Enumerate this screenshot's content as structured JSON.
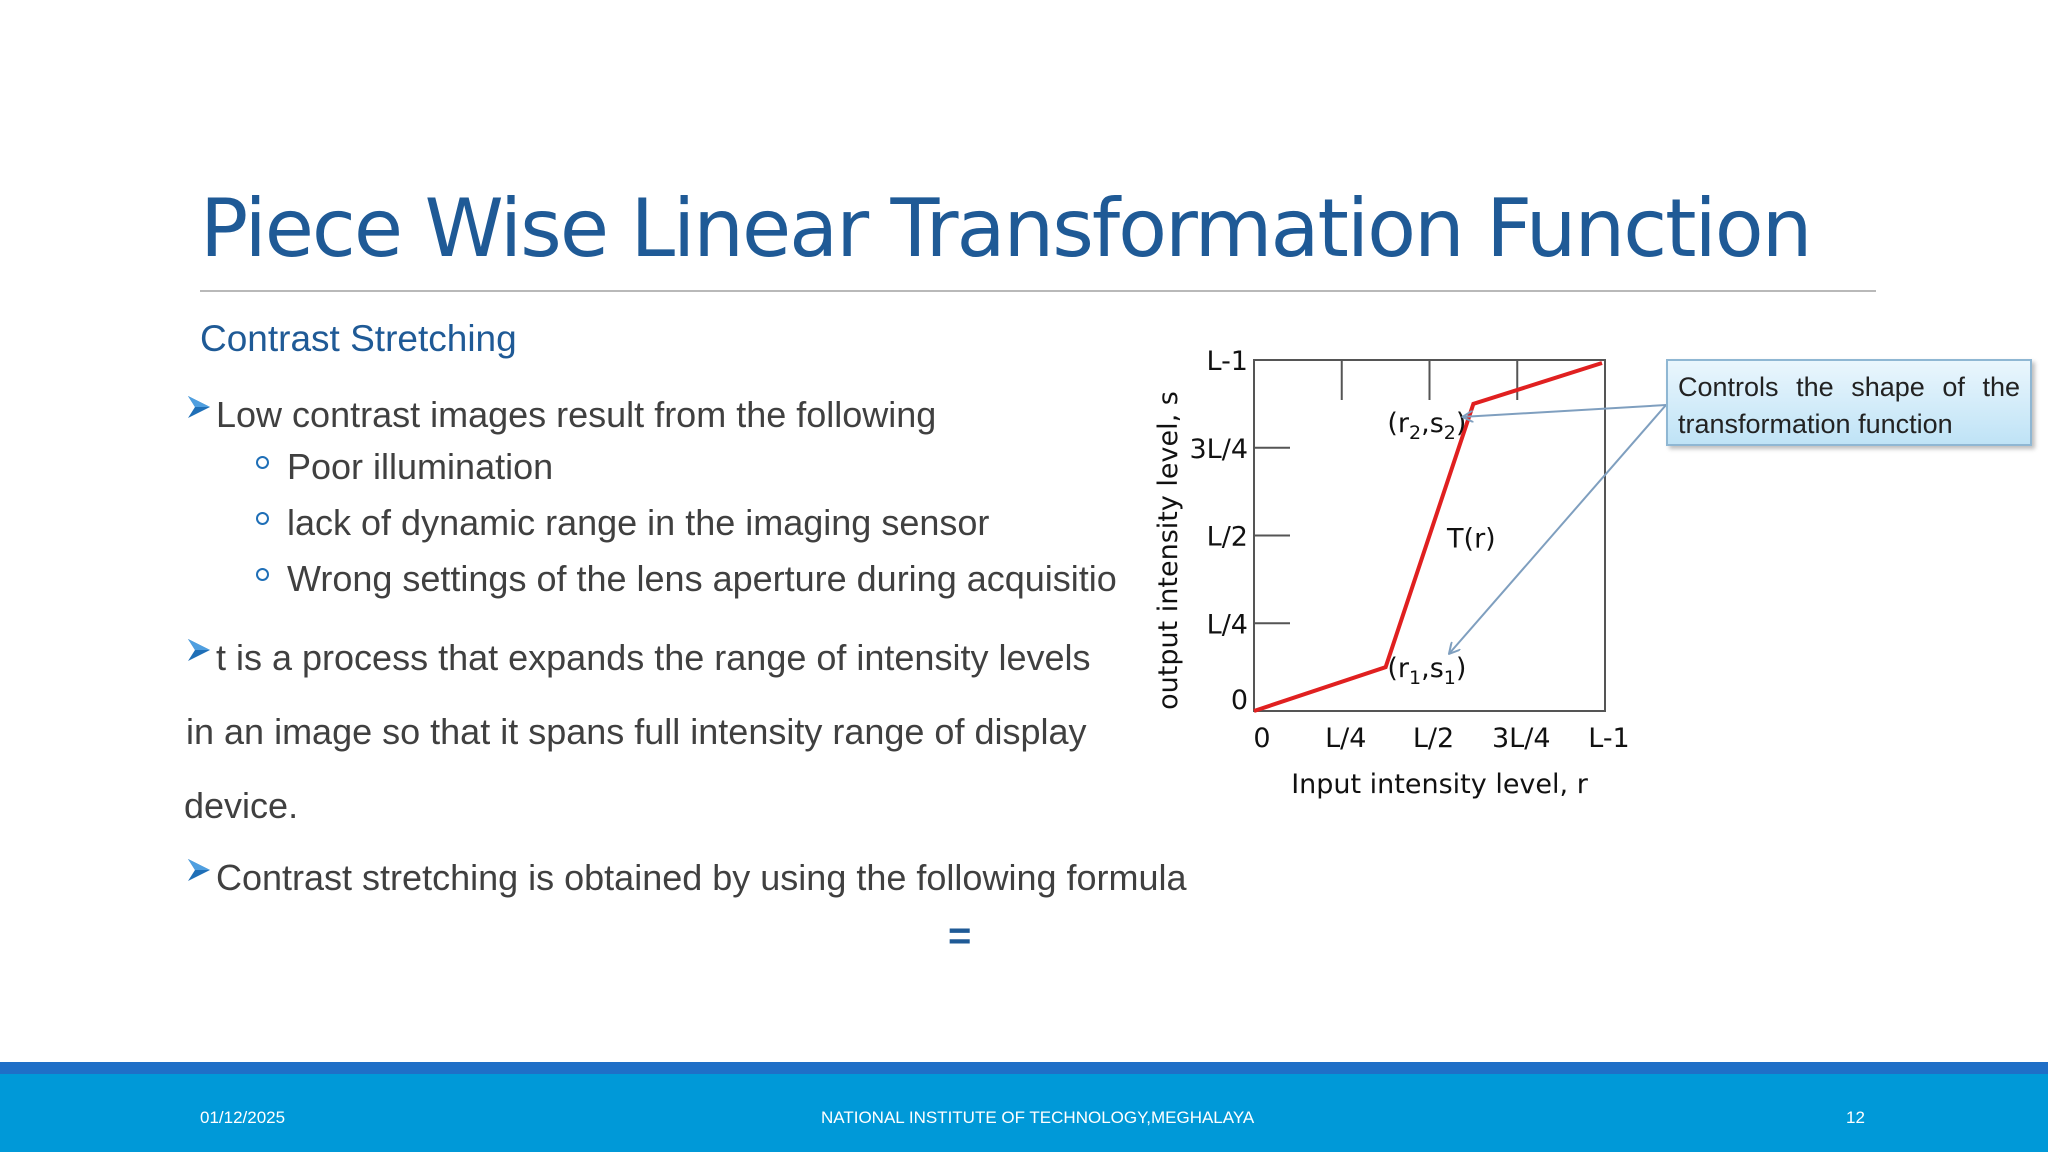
{
  "slide": {
    "title": "Piece Wise Linear Transformation Function",
    "subtitle": "Contrast Stretching",
    "bullet1": "Low contrast images result from the following",
    "sub_bullets": [
      "Poor illumination",
      "lack of dynamic range in the imaging sensor",
      "Wrong settings of the lens aperture during acquisitio"
    ],
    "bullet2_line1": "t is a process that expands the range of intensity levels",
    "bullet2_line2": " in an image so that it spans full intensity range of display",
    "bullet2_line3": "device.",
    "bullet3": "Contrast stretching is obtained by using the following formula",
    "equals": "="
  },
  "chart_data": {
    "type": "line",
    "xlabel": "Input intensity level, r",
    "ylabel": "output intensity level, s",
    "x_ticks": [
      "0",
      "L/4",
      "L/2",
      "3L/4",
      "L-1"
    ],
    "y_ticks": [
      "0",
      "L/4",
      "L/2",
      "3L/4",
      "L-1"
    ],
    "xlim": [
      0,
      1
    ],
    "ylim": [
      0,
      1
    ],
    "series": [
      {
        "color": "#e02020",
        "points": [
          [
            0,
            0
          ],
          [
            0.375,
            0.125
          ],
          [
            0.625,
            0.875
          ],
          [
            1,
            1
          ]
        ]
      }
    ],
    "annotations": [
      {
        "text_main": "(r",
        "sub1": "2",
        "mid": ",s",
        "sub2": "2",
        "end": ")",
        "x": 0.625,
        "y": 0.875
      },
      {
        "text_main": "(r",
        "sub1": "1",
        "mid": ",s",
        "sub2": "1",
        "end": ")",
        "x": 0.375,
        "y": 0.125
      }
    ],
    "curve_label": "T(r)",
    "callout": {
      "line1_words": [
        "Controls",
        "the",
        "shape",
        "of",
        "the"
      ],
      "line2": "transformation function"
    }
  },
  "footer": {
    "date": "01/12/2025",
    "institution": "NATIONAL INSTITUTE OF TECHNOLOGY,MEGHALAYA",
    "page": "12"
  },
  "colors": {
    "title": "#1f5a96",
    "footer": "#0099d8",
    "footer_top": "#1f6fc7",
    "curve": "#e02020",
    "callout_arrow": "#7f9fbf"
  }
}
